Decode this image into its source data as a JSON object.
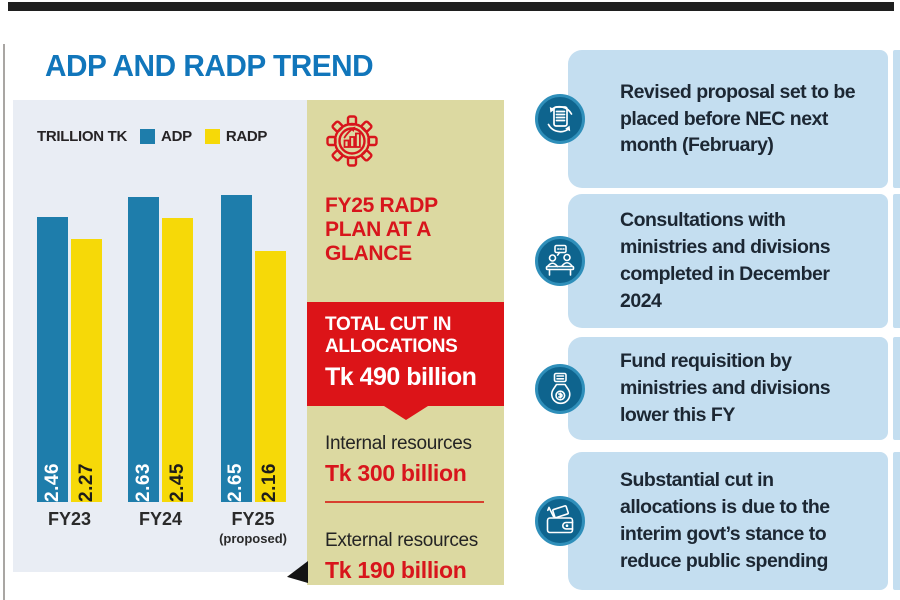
{
  "page": {
    "title": "ADP AND RADP TREND"
  },
  "chart_data": {
    "type": "bar",
    "title": "ADP AND RADP TREND",
    "unit_label": "TRILLION TK",
    "categories": [
      "FY23",
      "FY24",
      "FY25"
    ],
    "category_footnotes": [
      "",
      "",
      "(proposed)"
    ],
    "series": [
      {
        "name": "ADP",
        "color": "#1e7dab",
        "values": [
          2.46,
          2.63,
          2.65
        ]
      },
      {
        "name": "RADP",
        "color": "#f6d908",
        "values": [
          2.27,
          2.45,
          2.16
        ]
      }
    ],
    "ylim": [
      0,
      2.8
    ],
    "grid": false,
    "legend_position": "top",
    "value_labels": "rotated-vertical-on-bars"
  },
  "plan_panel": {
    "icon": "gear-chart-icon",
    "title": "FY25 RADP PLAN AT A GLANCE",
    "total_cut": {
      "label": "TOTAL CUT IN ALLOCATIONS",
      "value": "Tk 490 billion"
    },
    "resources": [
      {
        "label": "Internal resources",
        "value": "Tk 300 billion"
      },
      {
        "label": "External resources",
        "value": "Tk 190 billion"
      }
    ]
  },
  "notes": [
    {
      "icon": "document-refresh-icon",
      "text": "Revised proposal set to be placed before NEC next month (February)"
    },
    {
      "icon": "consultation-meeting-icon",
      "text": "Consultations with ministries and divisions completed in December 2024"
    },
    {
      "icon": "fund-money-bag-icon",
      "text": "Fund requisition by ministries and divisions lower this FY"
    },
    {
      "icon": "wallet-icon",
      "text": "Substantial cut in allocations is due to the interim govt’s stance to reduce public spending"
    }
  ],
  "colors": {
    "title_blue": "#1176bb",
    "adp_bar": "#1e7dab",
    "radp_bar": "#f6d908",
    "chart_bg": "#e9edf4",
    "plan_bg": "#dcd9a1",
    "accent_red": "#dc1418",
    "note_bg": "#c4def0",
    "note_text": "#1c2733",
    "icon_circle_fill": "#0e648e",
    "icon_circle_ring": "#2f8fba"
  }
}
